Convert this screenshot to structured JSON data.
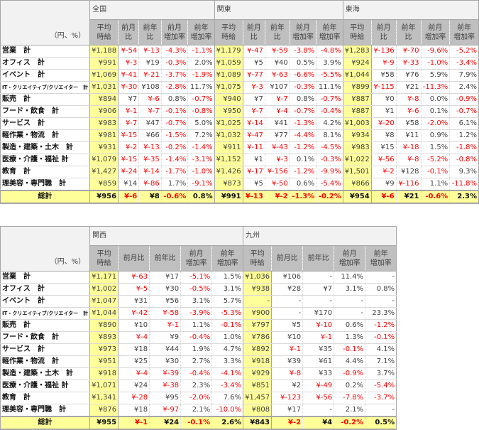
{
  "unit_label": "（円、%）",
  "subheaders": [
    "平均\n時給",
    "前月比",
    "前年比",
    "前月\n増加率",
    "前年\n増加率"
  ],
  "row_labels": [
    "営業　計",
    "オフィス　計",
    "イベント　計",
    "IT・クリエイティブ/クリエイター　計",
    "販売　計",
    "フード・飲食　計",
    "サービス　計",
    "軽作業・物流　計",
    "製造・建築・土木　計",
    "医療・介護・福祉 計",
    "教育　計",
    "理美容・専門職　計"
  ],
  "total_label": "総計",
  "tables": [
    {
      "regions": [
        {
          "name": "全国",
          "rows": [
            [
              "¥1,188",
              "¥-54",
              "¥-13",
              "-4.3%",
              "-1.1%"
            ],
            [
              "¥991",
              "¥-3",
              "¥19",
              "-0.3%",
              "2.0%"
            ],
            [
              "¥1,069",
              "¥-41",
              "¥-21",
              "-3.7%",
              "-1.9%"
            ],
            [
              "¥1,031",
              "¥-30",
              "¥108",
              "-2.8%",
              "11.7%"
            ],
            [
              "¥894",
              "¥7",
              "¥-6",
              "0.8%",
              "-0.7%"
            ],
            [
              "¥906",
              "¥-1",
              "¥-7",
              "-0.1%",
              "-0.8%"
            ],
            [
              "¥983",
              "¥-7",
              "¥47",
              "-0.7%",
              "5.0%"
            ],
            [
              "¥981",
              "¥-15",
              "¥66",
              "-1.5%",
              "7.2%"
            ],
            [
              "¥931",
              "¥-2",
              "¥-13",
              "-0.2%",
              "-1.4%"
            ],
            [
              "¥1,079",
              "¥-15",
              "¥-35",
              "-1.4%",
              "-3.1%"
            ],
            [
              "¥1,427",
              "¥-24",
              "¥-14",
              "-1.7%",
              "-1.0%"
            ],
            [
              "¥859",
              "¥14",
              "¥-86",
              "1.7%",
              "-9.1%"
            ]
          ],
          "total": [
            "¥956",
            "¥-6",
            "¥8",
            "-0.6%",
            "0.8%"
          ]
        },
        {
          "name": "関東",
          "rows": [
            [
              "¥1,179",
              "¥-47",
              "¥-59",
              "-3.8%",
              "-4.8%"
            ],
            [
              "¥1,059",
              "¥5",
              "¥40",
              "0.5%",
              "3.9%"
            ],
            [
              "¥1,089",
              "¥-77",
              "¥-63",
              "-6.6%",
              "-5.5%"
            ],
            [
              "¥1,075",
              "¥-3",
              "¥107",
              "-0.3%",
              "11.1%"
            ],
            [
              "¥940",
              "¥7",
              "¥-7",
              "0.8%",
              "-0.7%"
            ],
            [
              "¥950",
              "¥-7",
              "¥-4",
              "-0.7%",
              "-0.4%"
            ],
            [
              "¥1,025",
              "¥-14",
              "¥41",
              "-1.3%",
              "4.2%"
            ],
            [
              "¥1,032",
              "¥-47",
              "¥77",
              "-4.4%",
              "8.1%"
            ],
            [
              "¥911",
              "¥-11",
              "¥-43",
              "-1.2%",
              "-4.5%"
            ],
            [
              "¥1,152",
              "¥1",
              "¥-3",
              "0.1%",
              "-0.3%"
            ],
            [
              "¥1,426",
              "¥-17",
              "¥-156",
              "-1.2%",
              "-9.9%"
            ],
            [
              "¥873",
              "¥5",
              "¥-50",
              "0.6%",
              "-5.4%"
            ]
          ],
          "total": [
            "¥991",
            "¥-13",
            "¥-2",
            "-1.3%",
            "-0.2%"
          ]
        },
        {
          "name": "東海",
          "rows": [
            [
              "¥1,283",
              "¥-136",
              "¥-70",
              "-9.6%",
              "-5.2%"
            ],
            [
              "¥924",
              "¥-9",
              "¥-33",
              "-1.0%",
              "-3.4%"
            ],
            [
              "¥1,044",
              "¥58",
              "¥76",
              "5.9%",
              "7.9%"
            ],
            [
              "¥899",
              "¥-115",
              "¥21",
              "-11.3%",
              "2.4%"
            ],
            [
              "¥887",
              "¥0",
              "¥-8",
              "0.0%",
              "-0.9%"
            ],
            [
              "¥887",
              "¥1",
              "¥-6",
              "0.1%",
              "-0.7%"
            ],
            [
              "¥1,003",
              "¥-20",
              "¥58",
              "-2.0%",
              "6.1%"
            ],
            [
              "¥934",
              "¥8",
              "¥11",
              "0.9%",
              "1.2%"
            ],
            [
              "¥983",
              "¥15",
              "¥-18",
              "1.5%",
              "-1.8%"
            ],
            [
              "¥1,022",
              "¥-56",
              "¥-8",
              "-5.2%",
              "-0.8%"
            ],
            [
              "¥1,501",
              "¥-2",
              "¥128",
              "-0.1%",
              "9.3%"
            ],
            [
              "¥866",
              "¥9",
              "¥-116",
              "1.1%",
              "-11.8%"
            ]
          ],
          "total": [
            "¥954",
            "¥-6",
            "¥21",
            "-0.6%",
            "2.3%"
          ]
        }
      ]
    },
    {
      "regions": [
        {
          "name": "関西",
          "rows": [
            [
              "¥1,171",
              "¥-63",
              "¥17",
              "-5.1%",
              "1.5%"
            ],
            [
              "¥1,002",
              "¥-5",
              "¥30",
              "-0.5%",
              "3.1%"
            ],
            [
              "¥1,047",
              "¥31",
              "¥56",
              "3.1%",
              "5.7%"
            ],
            [
              "¥1,044",
              "¥-42",
              "¥-58",
              "-3.9%",
              "-5.3%"
            ],
            [
              "¥890",
              "¥10",
              "¥-1",
              "1.1%",
              "-0.1%"
            ],
            [
              "¥893",
              "¥-4",
              "¥9",
              "-0.4%",
              "1.0%"
            ],
            [
              "¥973",
              "¥18",
              "¥44",
              "1.9%",
              "4.7%"
            ],
            [
              "¥951",
              "¥25",
              "¥30",
              "2.7%",
              "3.3%"
            ],
            [
              "¥918",
              "¥-4",
              "¥-39",
              "-0.4%",
              "-4.1%"
            ],
            [
              "¥1,071",
              "¥24",
              "¥-38",
              "2.3%",
              "-3.4%"
            ],
            [
              "¥1,341",
              "¥-28",
              "¥95",
              "-2.0%",
              "7.6%"
            ],
            [
              "¥876",
              "¥18",
              "¥-97",
              "2.1%",
              "-10.0%"
            ]
          ],
          "total": [
            "¥955",
            "¥-1",
            "¥24",
            "-0.1%",
            "2.6%"
          ]
        },
        {
          "name": "九州",
          "rows": [
            [
              "¥1,036",
              "¥106",
              "-",
              "11.4%",
              "-"
            ],
            [
              "¥938",
              "¥28",
              "¥7",
              "3.1%",
              "0.8%"
            ],
            [
              "-",
              "-",
              "-",
              "-",
              "-"
            ],
            [
              "¥900",
              "-",
              "¥170",
              "-",
              "23.3%"
            ],
            [
              "¥797",
              "¥5",
              "¥-10",
              "0.6%",
              "-1.2%"
            ],
            [
              "¥786",
              "¥10",
              "¥-1",
              "1.3%",
              "-0.1%"
            ],
            [
              "¥892",
              "¥-1",
              "¥35",
              "-0.1%",
              "4.1%"
            ],
            [
              "¥918",
              "¥39",
              "¥61",
              "4.4%",
              "7.1%"
            ],
            [
              "¥929",
              "¥-8",
              "¥33",
              "-0.9%",
              "3.7%"
            ],
            [
              "¥851",
              "¥2",
              "¥-49",
              "0.2%",
              "-5.4%"
            ],
            [
              "¥1,457",
              "¥-123",
              "¥-56",
              "-7.8%",
              "-3.7%"
            ],
            [
              "¥808",
              "¥17",
              "-",
              "2.1%",
              "-"
            ]
          ],
          "total": [
            "¥843",
            "¥-2",
            "¥4",
            "-0.2%",
            "0.5%"
          ]
        }
      ]
    }
  ]
}
